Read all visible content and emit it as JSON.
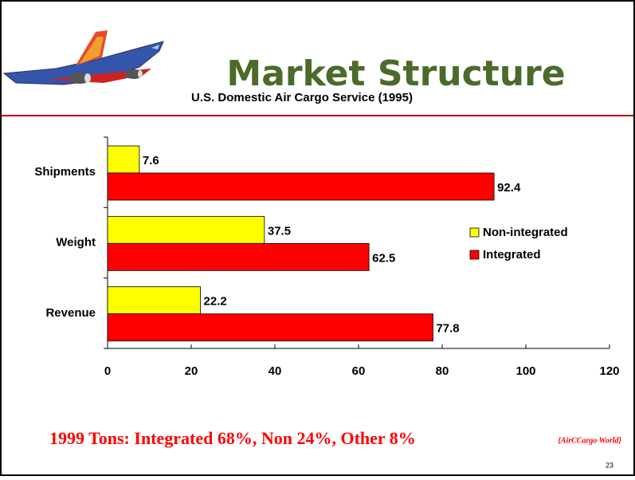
{
  "chart_data": {
    "type": "bar",
    "orientation": "horizontal",
    "title": "Market Structure",
    "subtitle": "U.S. Domestic Air Cargo Service (1995)",
    "categories": [
      "Shipments",
      "Weight",
      "Revenue"
    ],
    "series": [
      {
        "name": "Non-integrated",
        "color": "#ffff00",
        "values": [
          7.6,
          37.5,
          22.2
        ]
      },
      {
        "name": "Integrated",
        "color": "#ff0000",
        "values": [
          92.4,
          62.5,
          77.8
        ]
      }
    ],
    "xlim": [
      0,
      120
    ],
    "xticks": [
      0,
      20,
      40,
      60,
      80,
      100,
      120
    ],
    "legend": "right"
  },
  "slide": {
    "footnote": "1999 Tons: Integrated 68%, Non 24%, Other 8%",
    "source": "{AirCCargo World}",
    "page_number": "23"
  }
}
